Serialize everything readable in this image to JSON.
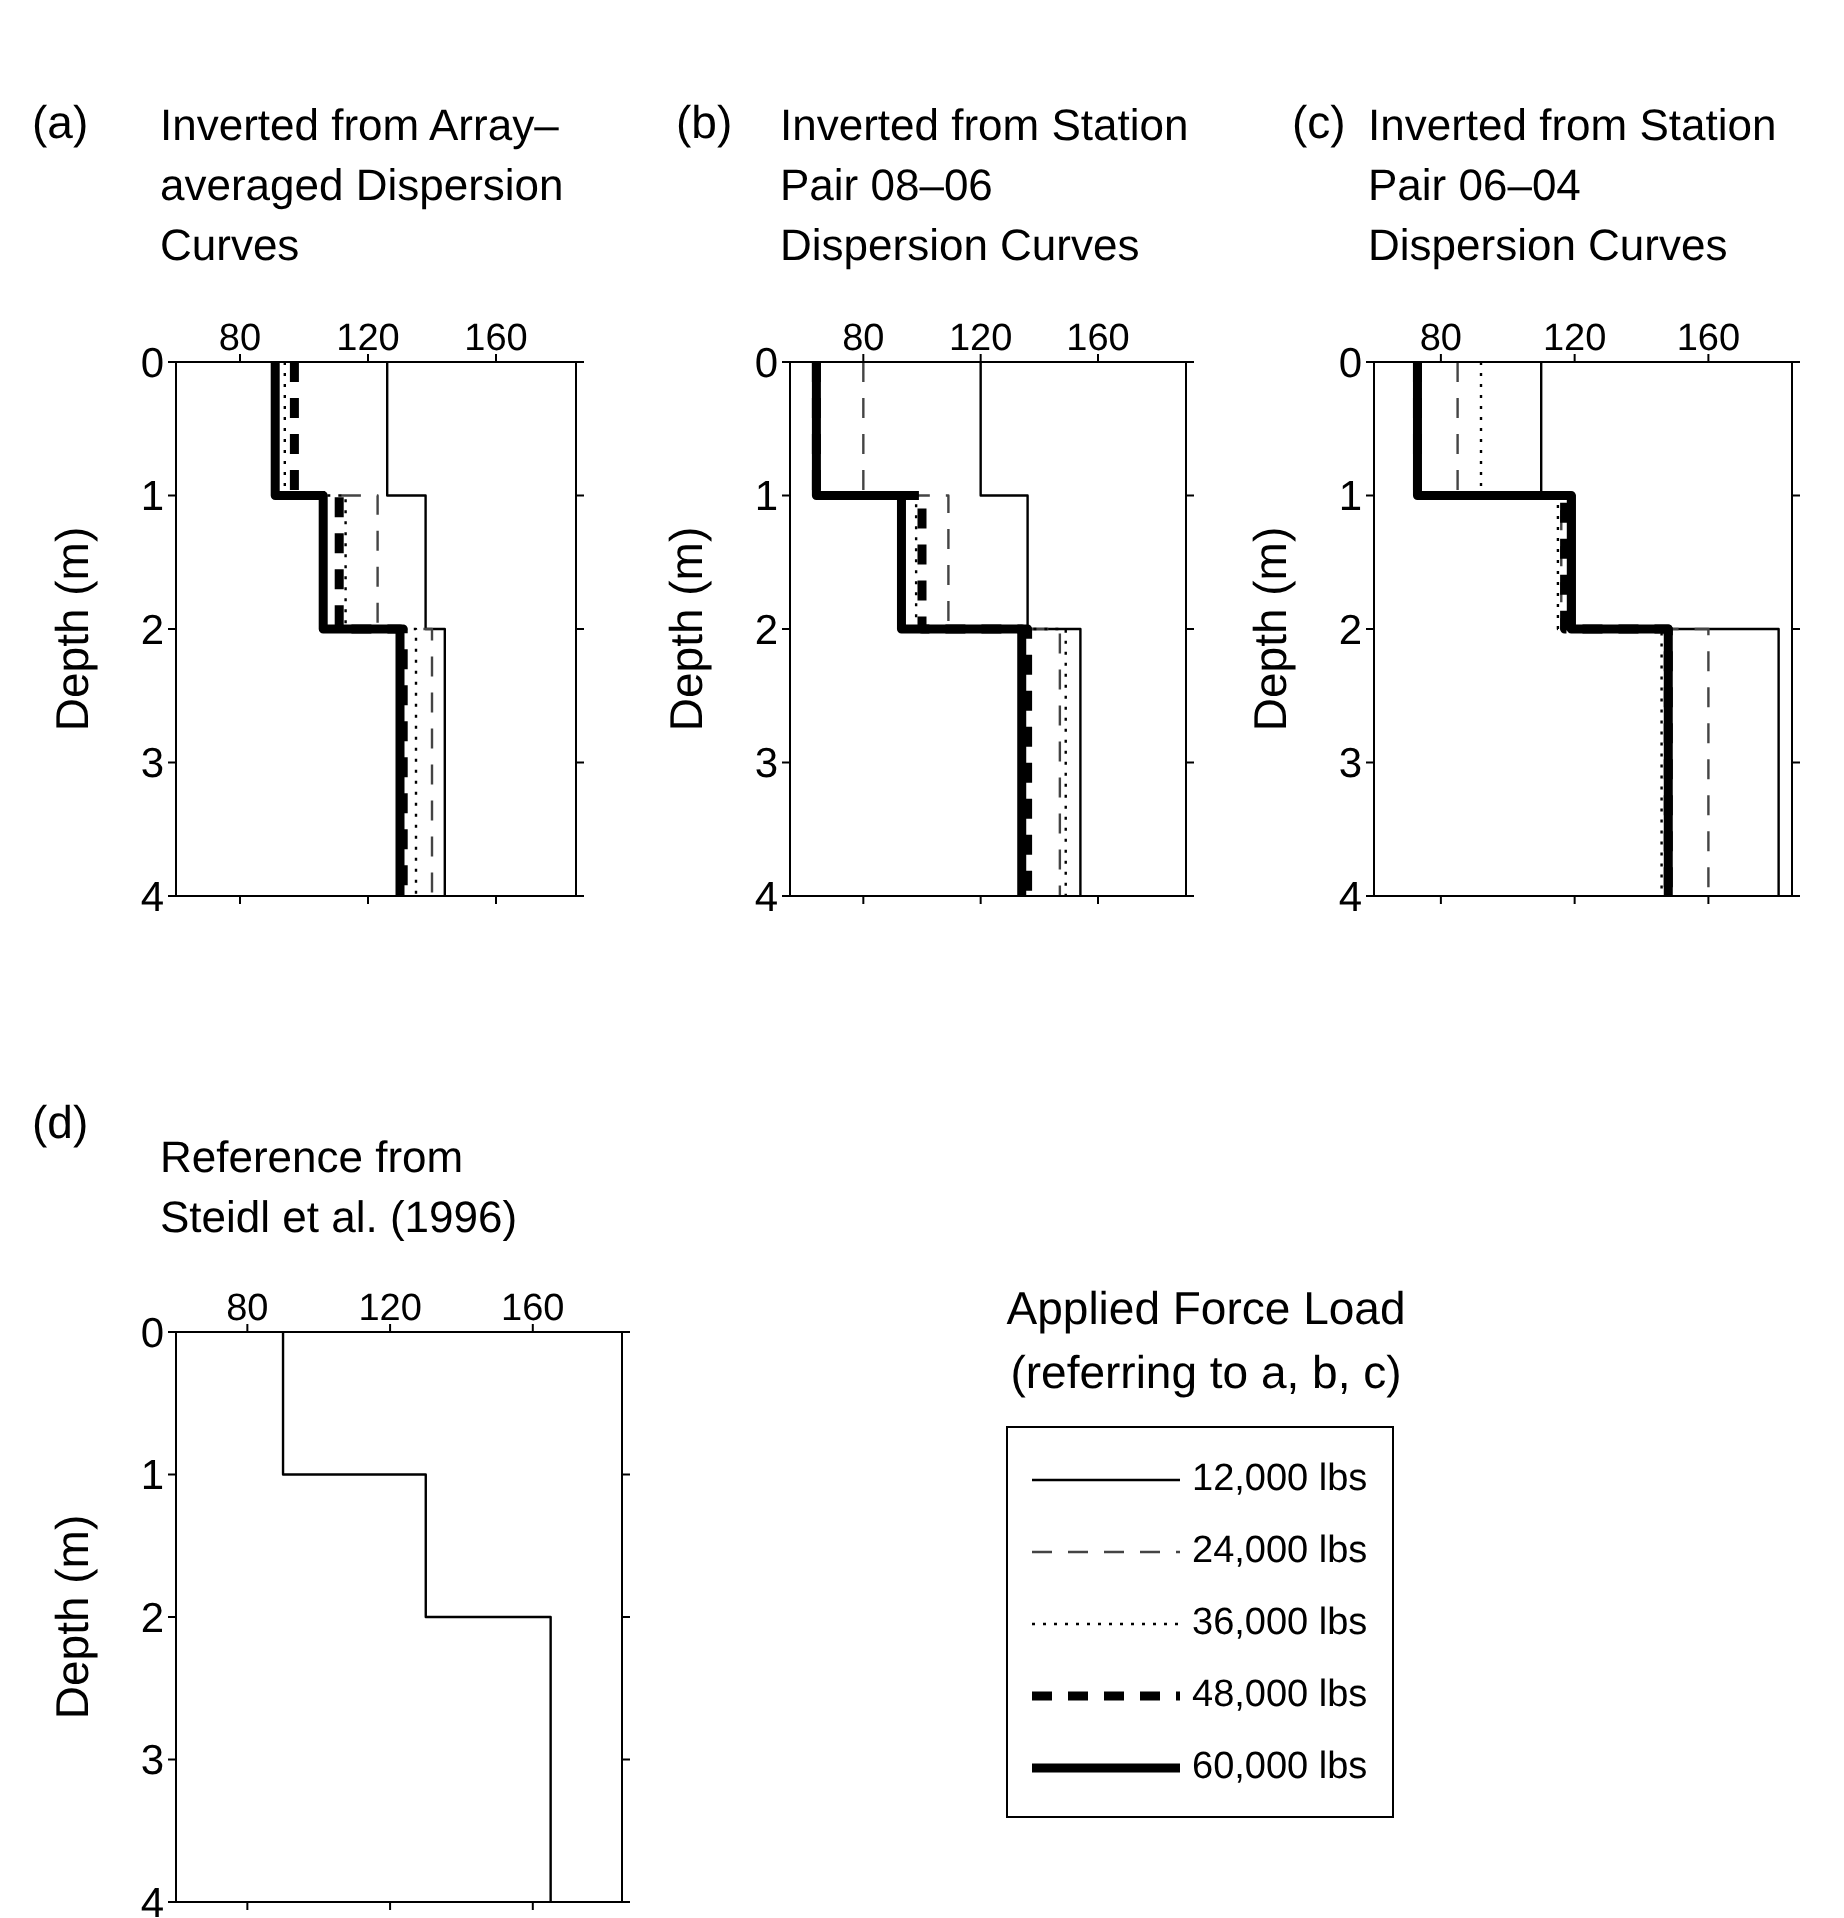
{
  "chart_data": [
    {
      "type": "line",
      "title": "Inverted from Array–averaged Dispersion Curves",
      "annotations": [
        "(a)"
      ],
      "ylabel": "Depth (m)",
      "xlim": [
        60,
        185
      ],
      "xticks": [
        80,
        120,
        160
      ],
      "ylim": [
        4,
        0
      ],
      "yticks": [
        0,
        1,
        2,
        3,
        4
      ],
      "legend": "bottom right",
      "legend_title": "Applied Force Load (referring to a, b, c)",
      "series": [
        {
          "name": "12,000 lbs",
          "color": "#000000",
          "line_style": "solid",
          "x": [
            126,
            126,
            138,
            138,
            144,
            144
          ],
          "values": [
            0,
            1,
            1,
            2,
            2,
            4
          ]
        },
        {
          "name": "24,000 lbs",
          "color": "#444444",
          "line_style": "dashed",
          "x": [
            97,
            97,
            123,
            123,
            140,
            140
          ],
          "values": [
            0,
            1,
            1,
            2,
            2,
            4
          ]
        },
        {
          "name": "36,000 lbs",
          "color": "#000000",
          "line_style": "dotted",
          "x": [
            94,
            94,
            113,
            113,
            135,
            135
          ],
          "values": [
            0,
            1,
            1,
            2,
            2,
            4
          ]
        },
        {
          "name": "48,000 lbs",
          "color": "#000000",
          "line_style": "dashed",
          "x": [
            97,
            97,
            111,
            111,
            131,
            131
          ],
          "values": [
            0,
            1,
            1,
            2,
            2,
            4
          ]
        },
        {
          "name": "60,000 lbs",
          "color": "#000000",
          "line_style": "solid",
          "x": [
            91,
            91,
            106,
            106,
            130,
            130
          ],
          "values": [
            0,
            1,
            1,
            2,
            2,
            4
          ]
        }
      ]
    },
    {
      "type": "line",
      "title": "Inverted from Station Pair 08–06 Dispersion Curves",
      "annotations": [
        "(b)"
      ],
      "ylabel": "Depth (m)",
      "xlim": [
        55,
        190
      ],
      "xticks": [
        80,
        120,
        160
      ],
      "ylim": [
        4,
        0
      ],
      "yticks": [
        0,
        1,
        2,
        3,
        4
      ],
      "series": [
        {
          "color": "#000000",
          "line_style": "solid",
          "x": [
            120,
            120,
            136,
            136,
            154,
            154
          ],
          "values": [
            0,
            1,
            1,
            2,
            2,
            4
          ]
        },
        {
          "color": "#444444",
          "line_style": "dashed",
          "x": [
            80,
            80,
            109,
            109,
            147,
            147
          ],
          "values": [
            0,
            1,
            1,
            2,
            2,
            4
          ]
        },
        {
          "color": "#000000",
          "line_style": "dotted",
          "x": [
            64,
            64,
            98,
            98,
            149,
            149
          ],
          "values": [
            0,
            1,
            1,
            2,
            2,
            4
          ]
        },
        {
          "color": "#000000",
          "line_style": "dashed",
          "x": [
            64,
            64,
            100,
            100,
            136,
            136
          ],
          "values": [
            0,
            1,
            1,
            2,
            2,
            4
          ]
        },
        {
          "color": "#000000",
          "line_style": "solid",
          "x": [
            64,
            64,
            93,
            93,
            134,
            134
          ],
          "values": [
            0,
            1,
            1,
            2,
            2,
            4
          ]
        }
      ]
    },
    {
      "type": "line",
      "title": "Inverted from Station Pair 06–04 Dispersion Curves",
      "annotations": [
        "(c)"
      ],
      "ylabel": "Depth (m)",
      "xlim": [
        60,
        185
      ],
      "xticks": [
        80,
        120,
        160
      ],
      "ylim": [
        4,
        0
      ],
      "yticks": [
        0,
        1,
        2,
        3,
        4
      ],
      "series": [
        {
          "color": "#000000",
          "line_style": "solid",
          "x": [
            110,
            110,
            120,
            120,
            181,
            181
          ],
          "values": [
            0,
            1,
            1,
            2,
            2,
            4
          ]
        },
        {
          "color": "#444444",
          "line_style": "dashed",
          "x": [
            85,
            85,
            116,
            116,
            160,
            160
          ],
          "values": [
            0,
            1,
            1,
            2,
            2,
            4
          ]
        },
        {
          "color": "#000000",
          "line_style": "dotted",
          "x": [
            92,
            92,
            115,
            115,
            146,
            146
          ],
          "values": [
            0,
            1,
            1,
            2,
            2,
            4
          ]
        },
        {
          "color": "#000000",
          "line_style": "dashed",
          "x": [
            73,
            73,
            117,
            117,
            148,
            148
          ],
          "values": [
            0,
            1,
            1,
            2,
            2,
            4
          ]
        },
        {
          "color": "#000000",
          "line_style": "solid",
          "x": [
            73,
            73,
            119,
            119,
            148,
            148
          ],
          "values": [
            0,
            1,
            1,
            2,
            2,
            4
          ]
        }
      ]
    },
    {
      "type": "line",
      "title": "Reference from Steidl et al. (1996)",
      "annotations": [
        "(d)"
      ],
      "ylabel": "Depth (m)",
      "xlim": [
        60,
        185
      ],
      "xticks": [
        80,
        120,
        160
      ],
      "ylim": [
        4,
        0
      ],
      "yticks": [
        0,
        1,
        2,
        3,
        4
      ],
      "series": [
        {
          "color": "#000000",
          "line_style": "solid",
          "x": [
            90,
            90,
            130,
            130,
            165,
            165
          ],
          "values": [
            0,
            1,
            1,
            2,
            2,
            4
          ]
        }
      ]
    }
  ]
}
